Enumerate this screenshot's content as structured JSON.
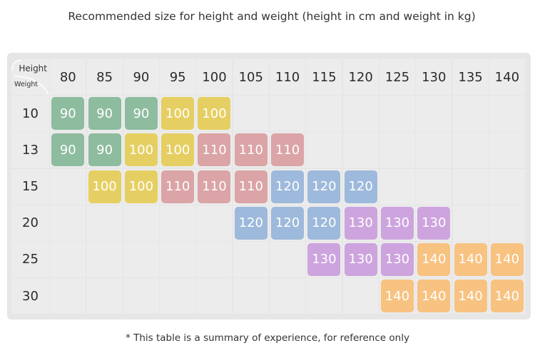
{
  "title": "Recommended size for height and weight (height in cm and weight in kg)",
  "footnote": "* This table is a summary of experience, for reference only",
  "corner": {
    "height_label": "Height",
    "weight_label": "Weight"
  },
  "heights": [
    "80",
    "85",
    "90",
    "95",
    "100",
    "105",
    "110",
    "115",
    "120",
    "125",
    "130",
    "135",
    "140"
  ],
  "weights": [
    "10",
    "13",
    "15",
    "20",
    "25",
    "30"
  ],
  "size_colors": {
    "90": "#8dbc9f",
    "100": "#e6cf62",
    "110": "#dba4a6",
    "120": "#9db9db",
    "130": "#cda4de",
    "140": "#f8c281"
  },
  "sizes": [
    [
      "90",
      "90",
      "90",
      "100",
      "100",
      "",
      "",
      "",
      "",
      "",
      "",
      "",
      ""
    ],
    [
      "90",
      "90",
      "100",
      "100",
      "110",
      "110",
      "110",
      "",
      "",
      "",
      "",
      "",
      ""
    ],
    [
      "",
      "100",
      "100",
      "110",
      "110",
      "110",
      "120",
      "120",
      "120",
      "",
      "",
      "",
      ""
    ],
    [
      "",
      "",
      "",
      "",
      "",
      "120",
      "120",
      "120",
      "130",
      "130",
      "130",
      "",
      ""
    ],
    [
      "",
      "",
      "",
      "",
      "",
      "",
      "",
      "130",
      "130",
      "130",
      "140",
      "140",
      "140"
    ],
    [
      "",
      "",
      "",
      "",
      "",
      "",
      "",
      "",
      "",
      "140",
      "140",
      "140",
      "140"
    ]
  ]
}
